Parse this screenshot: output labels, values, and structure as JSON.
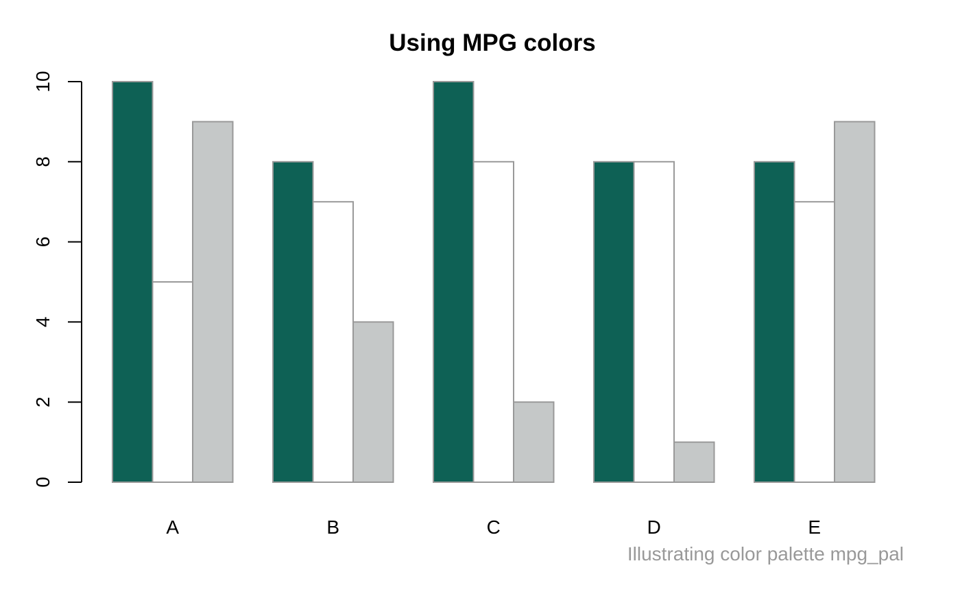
{
  "chart_data": {
    "type": "bar",
    "title": "Using MPG colors",
    "xlabel": "",
    "ylabel": "",
    "ylim": [
      0,
      10
    ],
    "yticks": [
      0,
      2,
      4,
      6,
      8,
      10
    ],
    "categories": [
      "A",
      "B",
      "C",
      "D",
      "E"
    ],
    "series": [
      {
        "color": "#0e6155",
        "values": [
          10,
          8,
          10,
          8,
          8
        ]
      },
      {
        "color": "#ffffff",
        "values": [
          5,
          7,
          8,
          8,
          7
        ]
      },
      {
        "color": "#c5c8c8",
        "values": [
          9,
          4,
          2,
          1,
          9
        ]
      }
    ],
    "grid": false,
    "legend": "none",
    "caption": "Illustrating color palette mpg_pal"
  }
}
